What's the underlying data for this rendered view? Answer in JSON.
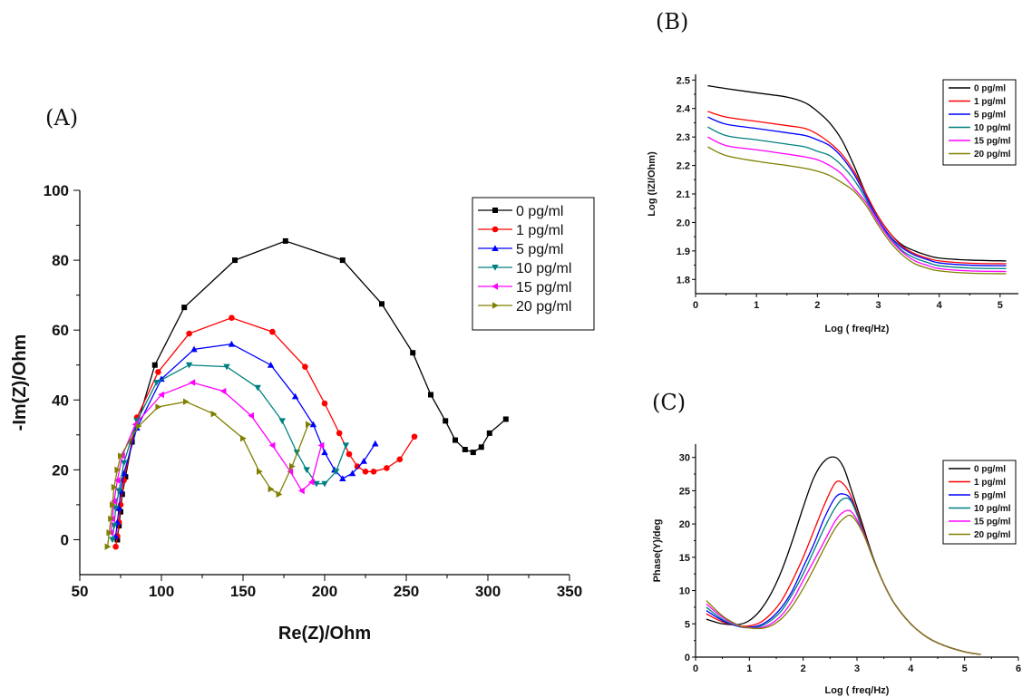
{
  "panel_labels": {
    "a": "(A)",
    "b": "(B)",
    "c": "(C)"
  },
  "colors": {
    "0 pg/ml": "#000000",
    "1 pg/ml": "#ff0000",
    "5 pg/ml": "#0000ff",
    "10 pg/ml": "#008080",
    "15 pg/ml": "#ff00ff",
    "20 pg/ml": "#808000"
  },
  "chart_data": [
    {
      "id": "A",
      "type": "scatter",
      "xlabel": "Re(Z)/Ohm",
      "ylabel": "-Im(Z)/Ohm",
      "xlim": [
        50,
        350
      ],
      "ylim": [
        -10,
        100
      ],
      "xticks": [
        "50",
        "100",
        "150",
        "200",
        "250",
        "300",
        "350"
      ],
      "yticks": [
        "0",
        "20",
        "40",
        "60",
        "80",
        "100"
      ],
      "legend_position": "top-right",
      "series": [
        {
          "name": "0 pg/ml",
          "marker": "square",
          "x": [
            73,
            74,
            75,
            76,
            78,
            82,
            96,
            114,
            145,
            176,
            211,
            235,
            254,
            265,
            274,
            280,
            286,
            291,
            296,
            301,
            311
          ],
          "y": [
            0,
            4,
            8,
            13,
            18,
            28,
            50,
            66.5,
            80,
            85.5,
            80,
            67.5,
            53.5,
            41.5,
            34,
            28.5,
            25.8,
            25,
            26.5,
            30.5,
            34.5
          ]
        },
        {
          "name": "1 pg/ml",
          "marker": "circle",
          "x": [
            72,
            73,
            74,
            75,
            77,
            85,
            98,
            117,
            143,
            168,
            188,
            200,
            209,
            215,
            220,
            225,
            230,
            238,
            246,
            255
          ],
          "y": [
            -2,
            1,
            5,
            10,
            17,
            35,
            48,
            59,
            63.5,
            59.5,
            49.5,
            39,
            30.5,
            24.5,
            21,
            19.5,
            19.5,
            20.5,
            23,
            29.5
          ]
        },
        {
          "name": "5 pg/ml",
          "marker": "triangle-up",
          "x": [
            72,
            73,
            74,
            75,
            77,
            85,
            100,
            120,
            143,
            167,
            182,
            193,
            200,
            206,
            211,
            217,
            224,
            231
          ],
          "y": [
            1,
            5,
            9,
            14,
            19,
            32,
            46,
            54.5,
            56,
            50,
            41,
            33,
            25,
            20,
            17.5,
            19,
            22.5,
            27.5
          ]
        },
        {
          "name": "10 pg/ml",
          "marker": "triangle-down",
          "x": [
            70,
            71,
            72,
            74,
            77,
            85,
            97,
            117,
            140,
            159,
            174,
            183,
            189,
            195,
            200,
            207,
            213
          ],
          "y": [
            0,
            4,
            9,
            14,
            22,
            34,
            45,
            50,
            49.5,
            43.5,
            34,
            25,
            20,
            16,
            16,
            19.5,
            27
          ]
        },
        {
          "name": "15 pg/ml",
          "marker": "triangle-left",
          "x": [
            69,
            70,
            71,
            73,
            76,
            84,
            100,
            119,
            138,
            155,
            168,
            179,
            186,
            192,
            198
          ],
          "y": [
            2,
            6,
            11,
            17,
            24,
            33,
            41.5,
            45,
            42.5,
            35.5,
            27,
            19.5,
            14,
            16.5,
            27
          ]
        },
        {
          "name": "20 pg/ml",
          "marker": "triangle-right",
          "x": [
            67,
            68,
            69,
            70,
            71,
            73,
            75,
            86,
            98,
            115,
            132,
            150,
            160,
            167,
            172,
            180,
            190
          ],
          "y": [
            -2,
            2,
            6,
            10,
            15,
            20,
            24,
            32.5,
            38,
            39.5,
            36,
            29,
            19.5,
            14.5,
            13,
            21,
            33
          ]
        }
      ]
    },
    {
      "id": "B",
      "type": "line",
      "xlabel": "Log ( freq/Hz)",
      "ylabel": "Log (IZI/Ohm)",
      "xlim": [
        0,
        5.3
      ],
      "ylim": [
        1.75,
        2.52
      ],
      "xticks": [
        "0",
        "1",
        "2",
        "3",
        "4",
        "5"
      ],
      "yticks": [
        "1.8",
        "1.9",
        "2.0",
        "2.1",
        "2.2",
        "2.3",
        "2.4",
        "2.5"
      ],
      "legend_position": "top-right",
      "series": [
        {
          "name": "0 pg/ml",
          "x": [
            0.2,
            0.5,
            1,
            1.5,
            1.8,
            2.0,
            2.2,
            2.4,
            2.6,
            2.8,
            3.0,
            3.2,
            3.4,
            3.6,
            3.8,
            4.0,
            4.5,
            5.1
          ],
          "y": [
            2.48,
            2.47,
            2.455,
            2.44,
            2.42,
            2.39,
            2.35,
            2.29,
            2.2,
            2.1,
            2.02,
            1.96,
            1.92,
            1.9,
            1.885,
            1.875,
            1.868,
            1.865
          ]
        },
        {
          "name": "1 pg/ml",
          "x": [
            0.2,
            0.5,
            1,
            1.5,
            1.8,
            2.0,
            2.2,
            2.4,
            2.6,
            2.8,
            3.0,
            3.2,
            3.4,
            3.6,
            3.8,
            4.0,
            4.5,
            5.1
          ],
          "y": [
            2.39,
            2.37,
            2.355,
            2.34,
            2.33,
            2.31,
            2.28,
            2.24,
            2.18,
            2.1,
            2.02,
            1.96,
            1.915,
            1.89,
            1.875,
            1.865,
            1.857,
            1.855
          ]
        },
        {
          "name": "5 pg/ml",
          "x": [
            0.2,
            0.5,
            1,
            1.5,
            1.8,
            2.0,
            2.2,
            2.4,
            2.6,
            2.8,
            3.0,
            3.2,
            3.4,
            3.6,
            3.8,
            4.0,
            4.5,
            5.1
          ],
          "y": [
            2.37,
            2.345,
            2.33,
            2.315,
            2.305,
            2.29,
            2.27,
            2.23,
            2.17,
            2.09,
            2.01,
            1.95,
            1.91,
            1.885,
            1.87,
            1.858,
            1.85,
            1.848
          ]
        },
        {
          "name": "10 pg/ml",
          "x": [
            0.2,
            0.5,
            1,
            1.5,
            1.8,
            2.0,
            2.2,
            2.4,
            2.6,
            2.8,
            3.0,
            3.2,
            3.4,
            3.6,
            3.8,
            4.0,
            4.5,
            5.1
          ],
          "y": [
            2.335,
            2.305,
            2.29,
            2.275,
            2.265,
            2.25,
            2.235,
            2.2,
            2.15,
            2.08,
            2.0,
            1.945,
            1.9,
            1.875,
            1.86,
            1.848,
            1.84,
            1.838
          ]
        },
        {
          "name": "15 pg/ml",
          "x": [
            0.2,
            0.5,
            1,
            1.5,
            1.8,
            2.0,
            2.2,
            2.4,
            2.6,
            2.8,
            3.0,
            3.2,
            3.4,
            3.6,
            3.8,
            4.0,
            4.5,
            5.1
          ],
          "y": [
            2.3,
            2.27,
            2.255,
            2.24,
            2.23,
            2.22,
            2.2,
            2.17,
            2.12,
            2.07,
            2.0,
            1.94,
            1.895,
            1.865,
            1.85,
            1.838,
            1.83,
            1.828
          ]
        },
        {
          "name": "20 pg/ml",
          "x": [
            0.2,
            0.5,
            1,
            1.5,
            1.8,
            2.0,
            2.2,
            2.4,
            2.6,
            2.8,
            3.0,
            3.2,
            3.4,
            3.6,
            3.8,
            4.0,
            4.5,
            5.1
          ],
          "y": [
            2.265,
            2.235,
            2.215,
            2.2,
            2.19,
            2.18,
            2.165,
            2.14,
            2.11,
            2.06,
            1.99,
            1.93,
            1.885,
            1.855,
            1.84,
            1.83,
            1.822,
            1.82
          ]
        }
      ]
    },
    {
      "id": "C",
      "type": "line",
      "xlabel": "Log ( freq/Hz)",
      "ylabel": "Phase(Y)/deg",
      "xlim": [
        0,
        6
      ],
      "ylim": [
        0,
        32
      ],
      "xticks": [
        "0",
        "1",
        "2",
        "3",
        "4",
        "5",
        "6"
      ],
      "yticks": [
        "0",
        "5",
        "10",
        "15",
        "20",
        "25",
        "30"
      ],
      "legend_position": "top-right",
      "series": [
        {
          "name": "0 pg/ml",
          "x": [
            0.2,
            0.5,
            0.8,
            1.0,
            1.2,
            1.4,
            1.6,
            1.8,
            2.0,
            2.2,
            2.4,
            2.6,
            2.75,
            2.9,
            3.1,
            3.3,
            3.5,
            3.7,
            4.0,
            4.3,
            4.6,
            5.0,
            5.3
          ],
          "y": [
            5.7,
            5.0,
            4.9,
            5.5,
            7.0,
            9.5,
            13,
            17.5,
            22.5,
            27,
            29.5,
            30,
            28.5,
            25,
            20,
            15,
            11,
            8,
            5,
            3,
            1.8,
            0.8,
            0.4
          ]
        },
        {
          "name": "1 pg/ml",
          "x": [
            0.2,
            0.5,
            0.8,
            1.0,
            1.2,
            1.4,
            1.6,
            1.8,
            2.0,
            2.2,
            2.4,
            2.6,
            2.75,
            2.9,
            3.1,
            3.3,
            3.5,
            3.7,
            4.0,
            4.3,
            4.6,
            5.0,
            5.3
          ],
          "y": [
            6.5,
            5.3,
            4.7,
            4.7,
            5.2,
            6.5,
            8.5,
            11.5,
            15,
            19,
            23,
            26.2,
            26,
            24,
            19.5,
            14.8,
            11,
            8,
            5,
            3,
            1.8,
            0.8,
            0.4
          ]
        },
        {
          "name": "5 pg/ml",
          "x": [
            0.2,
            0.5,
            0.8,
            1.0,
            1.2,
            1.4,
            1.6,
            1.8,
            2.0,
            2.2,
            2.4,
            2.6,
            2.75,
            2.9,
            3.1,
            3.3,
            3.5,
            3.7,
            4.0,
            4.3,
            4.6,
            5.0,
            5.3
          ],
          "y": [
            7.0,
            5.5,
            4.6,
            4.5,
            4.8,
            5.8,
            7.5,
            10,
            13.5,
            17,
            21,
            24,
            24.5,
            23.5,
            19.2,
            14.8,
            11,
            8,
            5,
            3,
            1.8,
            0.8,
            0.4
          ]
        },
        {
          "name": "10 pg/ml",
          "x": [
            0.2,
            0.5,
            0.8,
            1.0,
            1.2,
            1.4,
            1.6,
            1.8,
            2.0,
            2.2,
            2.4,
            2.6,
            2.75,
            2.9,
            3.1,
            3.3,
            3.5,
            3.7,
            4.0,
            4.3,
            4.6,
            5.0,
            5.3
          ],
          "y": [
            7.5,
            5.7,
            4.6,
            4.4,
            4.6,
            5.5,
            7.0,
            9.5,
            12.5,
            16,
            19.5,
            22.5,
            23.8,
            23.3,
            19.2,
            14.8,
            11,
            8,
            5,
            3,
            1.8,
            0.8,
            0.4
          ]
        },
        {
          "name": "15 pg/ml",
          "x": [
            0.2,
            0.5,
            0.8,
            1.0,
            1.2,
            1.4,
            1.6,
            1.8,
            2.0,
            2.2,
            2.4,
            2.6,
            2.75,
            2.9,
            3.1,
            3.3,
            3.5,
            3.7,
            4.0,
            4.3,
            4.6,
            5.0,
            5.3
          ],
          "y": [
            8.0,
            6.0,
            4.7,
            4.4,
            4.4,
            5.0,
            6.3,
            8.5,
            11.5,
            14.5,
            17.5,
            20.5,
            21.8,
            21.8,
            19,
            14.8,
            11,
            8,
            5,
            3,
            1.8,
            0.8,
            0.4
          ]
        },
        {
          "name": "20 pg/ml",
          "x": [
            0.2,
            0.5,
            0.8,
            1.0,
            1.2,
            1.4,
            1.6,
            1.8,
            2.0,
            2.2,
            2.4,
            2.6,
            2.75,
            2.9,
            3.1,
            3.3,
            3.5,
            3.7,
            4.0,
            4.3,
            4.6,
            5.0,
            5.3
          ],
          "y": [
            8.5,
            6.2,
            4.8,
            4.4,
            4.3,
            4.7,
            5.8,
            7.7,
            10.3,
            13.3,
            16.5,
            19.4,
            20.8,
            21.2,
            18.8,
            14.8,
            11,
            8,
            5,
            3,
            1.8,
            0.8,
            0.4
          ]
        }
      ]
    }
  ]
}
